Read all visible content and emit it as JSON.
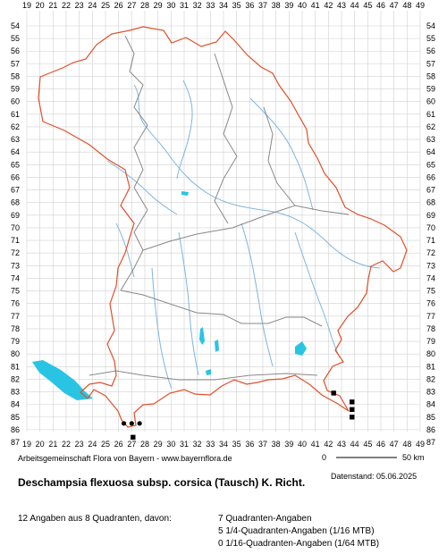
{
  "map": {
    "grid_columns": [
      "19",
      "20",
      "21",
      "22",
      "23",
      "24",
      "25",
      "26",
      "27",
      "28",
      "29",
      "30",
      "31",
      "32",
      "33",
      "34",
      "35",
      "36",
      "37",
      "38",
      "39",
      "40",
      "41",
      "42",
      "43",
      "44",
      "45",
      "46",
      "47",
      "48",
      "49"
    ],
    "grid_rows": [
      "54",
      "55",
      "56",
      "57",
      "58",
      "59",
      "60",
      "61",
      "62",
      "63",
      "64",
      "65",
      "66",
      "67",
      "68",
      "69",
      "70",
      "71",
      "72",
      "73",
      "74",
      "75",
      "76",
      "77",
      "78",
      "79",
      "80",
      "81",
      "82",
      "83",
      "84",
      "85",
      "86",
      "87"
    ],
    "colors": {
      "grid": "#d0d0d0",
      "state_border": "#e0502a",
      "district_border": "#888888",
      "rivers": "#7fb5df",
      "lakes": "#29c4e3",
      "records": "#000000"
    },
    "records": [
      {
        "symbol": "dot",
        "col": 26.4,
        "row": 85.5
      },
      {
        "symbol": "dot",
        "col": 27.0,
        "row": 85.5
      },
      {
        "symbol": "dot",
        "col": 27.6,
        "row": 85.5
      },
      {
        "symbol": "square",
        "col": 27.1,
        "row": 86.6
      },
      {
        "symbol": "square",
        "col": 42.4,
        "row": 83.1
      },
      {
        "symbol": "square",
        "col": 43.8,
        "row": 83.8
      },
      {
        "symbol": "square",
        "col": 43.8,
        "row": 84.4
      },
      {
        "symbol": "square",
        "col": 43.8,
        "row": 85.0
      }
    ],
    "scale": {
      "start": "0",
      "end": "50 km"
    }
  },
  "credit": "Arbeitsgemeinschaft Flora von Bayern - www.bayernflora.de",
  "datestamp": "Datenstand: 05.06.2025",
  "title": "Deschampsia flexuosa subsp. corsica (Tausch) K. Richt.",
  "summary": {
    "count": "12 Angaben aus 8 Quadranten, davon:",
    "quadrant": "7 Quadranten-Angaben",
    "quarter": "5 1/4-Quadranten-Angaben (1/16 MTB)",
    "sixteenth": "0 1/16-Quadranten-Angaben (1/64 MTB)"
  }
}
